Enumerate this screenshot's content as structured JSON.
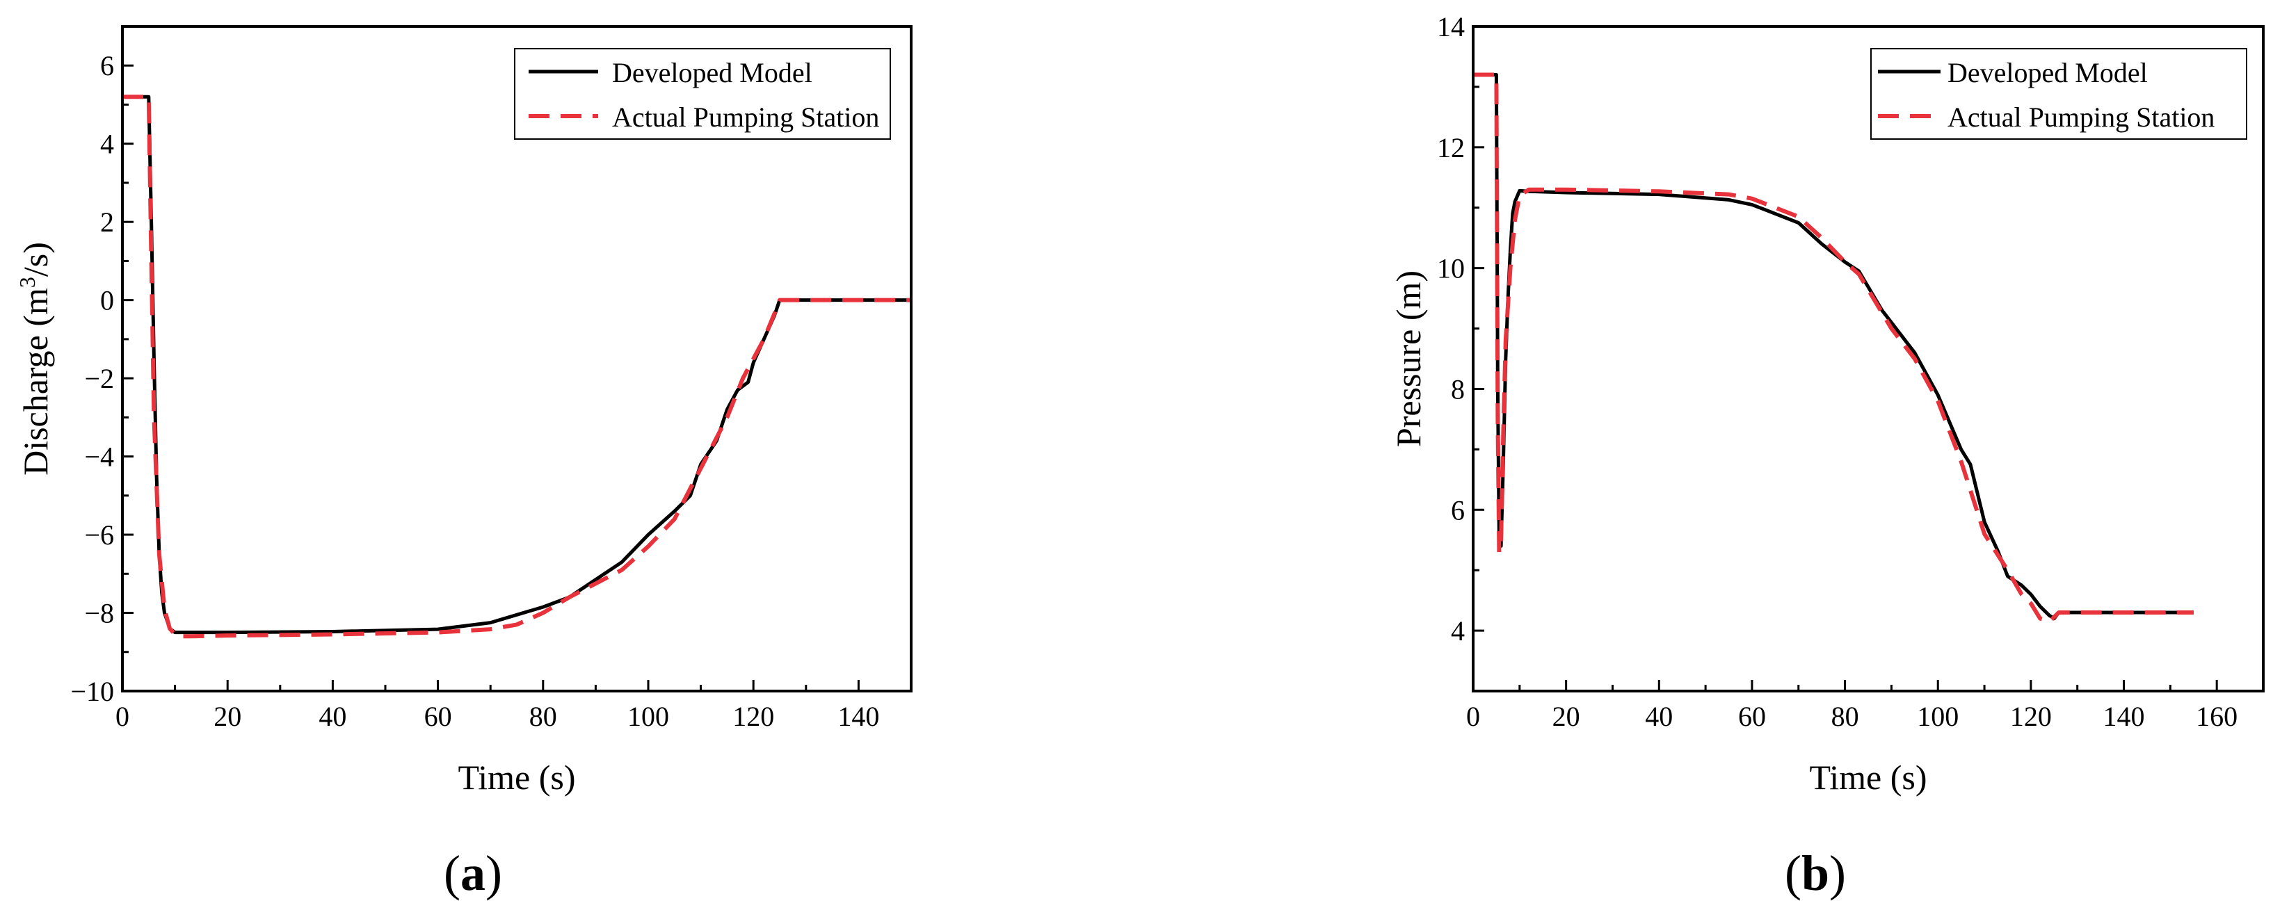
{
  "panels": [
    {
      "label_prefix": "(",
      "label_letter": "a",
      "label_suffix": ")"
    },
    {
      "label_prefix": "(",
      "label_letter": "b",
      "label_suffix": ")"
    }
  ],
  "chart_data": [
    {
      "type": "line",
      "title": "",
      "xlabel": "Time (s)",
      "ylabel_pre": "Discharge (m",
      "ylabel_sup": "3",
      "ylabel_post": "/s)",
      "xlim": [
        0,
        150
      ],
      "ylim": [
        -10,
        7
      ],
      "xticks": [
        0,
        20,
        40,
        60,
        80,
        100,
        120,
        140
      ],
      "yticks": [
        -10,
        -8,
        -6,
        -4,
        -2,
        0,
        2,
        4,
        6
      ],
      "ytick_labels": [
        "−10",
        "−8",
        "−6",
        "−4",
        "−2",
        "0",
        "2",
        "4",
        "6"
      ],
      "grid": false,
      "legend_position": "top-right",
      "series": [
        {
          "name": "Developed Model",
          "color": "#000000",
          "dash": "solid",
          "x": [
            0,
            5,
            5.5,
            6,
            6.5,
            7,
            7.5,
            8,
            9,
            10,
            11,
            13,
            20,
            40,
            60,
            70,
            80,
            85,
            95,
            100,
            105,
            108,
            110,
            113,
            115,
            117,
            119,
            120,
            122,
            124,
            125,
            126,
            130,
            140,
            150
          ],
          "y": [
            5.2,
            5.2,
            2.0,
            -1.5,
            -4.5,
            -6.5,
            -7.5,
            -8.0,
            -8.4,
            -8.5,
            -8.5,
            -8.5,
            -8.5,
            -8.48,
            -8.42,
            -8.25,
            -7.85,
            -7.6,
            -6.7,
            -6.0,
            -5.4,
            -5.0,
            -4.2,
            -3.6,
            -2.8,
            -2.3,
            -2.1,
            -1.6,
            -1.0,
            -0.4,
            0.0,
            0.0,
            0.0,
            0.0,
            0.0
          ]
        },
        {
          "name": "Actual Pumping Station",
          "color": "#e8333c",
          "dash": "dashed",
          "x": [
            0,
            5,
            5.5,
            6,
            7,
            8,
            9,
            10,
            11,
            13,
            20,
            40,
            60,
            70,
            75,
            80,
            85,
            95,
            100,
            105,
            110,
            115,
            118,
            120,
            122,
            124,
            125,
            126,
            130,
            140,
            150
          ],
          "y": [
            5.2,
            5.2,
            1.0,
            -3.0,
            -6.5,
            -7.9,
            -8.4,
            -8.55,
            -8.6,
            -8.6,
            -8.58,
            -8.55,
            -8.5,
            -8.42,
            -8.3,
            -8.0,
            -7.6,
            -6.9,
            -6.3,
            -5.6,
            -4.3,
            -3.0,
            -2.0,
            -1.5,
            -1.0,
            -0.35,
            0.0,
            0.0,
            0.0,
            0.0,
            0.0
          ]
        }
      ]
    },
    {
      "type": "line",
      "title": "",
      "xlabel": "Time (s)",
      "ylabel": "Pressure (m)",
      "xlim": [
        0,
        170
      ],
      "ylim": [
        3,
        14
      ],
      "xticks": [
        0,
        20,
        40,
        60,
        80,
        100,
        120,
        140,
        160
      ],
      "yticks": [
        4,
        6,
        8,
        10,
        12,
        14
      ],
      "grid": false,
      "legend_position": "top-right",
      "series": [
        {
          "name": "Developed Model",
          "color": "#000000",
          "dash": "solid",
          "x": [
            0,
            5,
            5.3,
            5.6,
            6,
            6.5,
            7,
            7.5,
            8,
            8.5,
            9,
            10,
            12,
            20,
            40,
            55,
            60,
            65,
            70,
            75,
            80,
            83,
            88,
            95,
            100,
            105,
            107,
            110,
            113,
            115,
            118,
            120,
            122,
            124,
            125,
            126,
            130,
            140,
            155
          ],
          "y": [
            13.2,
            13.2,
            8.0,
            5.5,
            5.4,
            6.8,
            8.5,
            9.5,
            10.3,
            10.9,
            11.1,
            11.28,
            11.27,
            11.25,
            11.22,
            11.13,
            11.05,
            10.9,
            10.75,
            10.4,
            10.1,
            9.95,
            9.3,
            8.6,
            7.9,
            7.0,
            6.75,
            5.8,
            5.3,
            4.9,
            4.75,
            4.6,
            4.4,
            4.25,
            4.2,
            4.3,
            4.3,
            4.3,
            4.3
          ]
        },
        {
          "name": "Actual Pumping Station",
          "color": "#e8333c",
          "dash": "dashed",
          "x": [
            0,
            5,
            5.3,
            5.6,
            6,
            6.5,
            7,
            8,
            9,
            10,
            12,
            20,
            40,
            55,
            60,
            65,
            70,
            75,
            80,
            83,
            90,
            95,
            100,
            105,
            110,
            115,
            118,
            120,
            122,
            124,
            126,
            130,
            140,
            155
          ],
          "y": [
            13.2,
            13.2,
            7.5,
            5.3,
            5.5,
            7.3,
            8.8,
            10.0,
            10.8,
            11.2,
            11.3,
            11.3,
            11.27,
            11.22,
            11.15,
            11.0,
            10.85,
            10.5,
            10.1,
            9.9,
            9.0,
            8.5,
            7.8,
            6.8,
            5.6,
            5.0,
            4.6,
            4.45,
            4.2,
            4.15,
            4.3,
            4.3,
            4.3,
            4.3
          ]
        }
      ]
    }
  ]
}
